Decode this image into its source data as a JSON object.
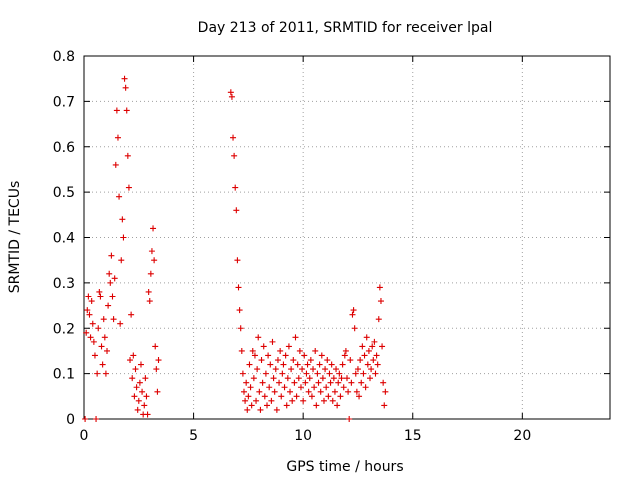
{
  "chart_data": {
    "type": "scatter",
    "title": "Day 213 of 2011, SRMTID for receiver lpal",
    "xlabel": "GPS time / hours",
    "ylabel": "SRMTID / TECUs",
    "xlim": [
      0,
      24
    ],
    "ylim": [
      0,
      0.8
    ],
    "x_ticks": [
      0,
      5,
      10,
      15,
      20
    ],
    "y_ticks": [
      0,
      0.1,
      0.2,
      0.3,
      0.4,
      0.5,
      0.6,
      0.7,
      0.8
    ],
    "x_tick_labels": [
      "0",
      "5",
      "10",
      "15",
      "20"
    ],
    "y_tick_labels": [
      "0",
      "0.1",
      "0.2",
      "0.3",
      "0.4",
      "0.5",
      "0.6",
      "0.7",
      "0.8"
    ],
    "grid": true,
    "marker": "plus",
    "color": "#dd0000",
    "series": [
      {
        "name": "SRMTID",
        "points": [
          [
            0.05,
            0
          ],
          [
            0.1,
            0.19
          ],
          [
            0.15,
            0.24
          ],
          [
            0.2,
            0.27
          ],
          [
            0.25,
            0.23
          ],
          [
            0.3,
            0.18
          ],
          [
            0.35,
            0.26
          ],
          [
            0.4,
            0.21
          ],
          [
            0.45,
            0.17
          ],
          [
            0.5,
            0.14
          ],
          [
            0.55,
            0
          ],
          [
            0.6,
            0.1
          ],
          [
            0.65,
            0.2
          ],
          [
            0.7,
            0.28
          ],
          [
            0.75,
            0.27
          ],
          [
            0.8,
            0.16
          ],
          [
            0.85,
            0.12
          ],
          [
            0.9,
            0.22
          ],
          [
            0.95,
            0.18
          ],
          [
            1.0,
            0.1
          ],
          [
            1.05,
            0.15
          ],
          [
            1.1,
            0.25
          ],
          [
            1.15,
            0.32
          ],
          [
            1.2,
            0.3
          ],
          [
            1.25,
            0.36
          ],
          [
            1.3,
            0.27
          ],
          [
            1.35,
            0.22
          ],
          [
            1.4,
            0.31
          ],
          [
            1.45,
            0.56
          ],
          [
            1.5,
            0.68
          ],
          [
            1.55,
            0.62
          ],
          [
            1.6,
            0.49
          ],
          [
            1.65,
            0.21
          ],
          [
            1.7,
            0.35
          ],
          [
            1.75,
            0.44
          ],
          [
            1.8,
            0.4
          ],
          [
            1.85,
            0.75
          ],
          [
            1.9,
            0.73
          ],
          [
            1.95,
            0.68
          ],
          [
            2.0,
            0.58
          ],
          [
            2.05,
            0.51
          ],
          [
            2.1,
            0.13
          ],
          [
            2.15,
            0.23
          ],
          [
            2.2,
            0.09
          ],
          [
            2.25,
            0.14
          ],
          [
            2.3,
            0.05
          ],
          [
            2.35,
            0.11
          ],
          [
            2.4,
            0.07
          ],
          [
            2.45,
            0.02
          ],
          [
            2.5,
            0.04
          ],
          [
            2.55,
            0.08
          ],
          [
            2.6,
            0.12
          ],
          [
            2.65,
            0.06
          ],
          [
            2.7,
            0.01
          ],
          [
            2.75,
            0.03
          ],
          [
            2.8,
            0.09
          ],
          [
            2.85,
            0.05
          ],
          [
            2.9,
            0.01
          ],
          [
            2.95,
            0.28
          ],
          [
            3.0,
            0.26
          ],
          [
            3.05,
            0.32
          ],
          [
            3.1,
            0.37
          ],
          [
            3.15,
            0.42
          ],
          [
            3.2,
            0.35
          ],
          [
            3.25,
            0.16
          ],
          [
            3.3,
            0.11
          ],
          [
            3.35,
            0.06
          ],
          [
            3.4,
            0.13
          ],
          [
            6.7,
            0.72
          ],
          [
            6.75,
            0.71
          ],
          [
            6.8,
            0.62
          ],
          [
            6.85,
            0.58
          ],
          [
            6.9,
            0.51
          ],
          [
            6.95,
            0.46
          ],
          [
            7.0,
            0.35
          ],
          [
            7.05,
            0.29
          ],
          [
            7.1,
            0.24
          ],
          [
            7.15,
            0.2
          ],
          [
            7.2,
            0.15
          ],
          [
            7.25,
            0.1
          ],
          [
            7.3,
            0.06
          ],
          [
            7.35,
            0.04
          ],
          [
            7.4,
            0.08
          ],
          [
            7.45,
            0.02
          ],
          [
            7.5,
            0.05
          ],
          [
            7.55,
            0.12
          ],
          [
            7.6,
            0.07
          ],
          [
            7.65,
            0.03
          ],
          [
            7.7,
            0.15
          ],
          [
            7.75,
            0.09
          ],
          [
            7.8,
            0.14
          ],
          [
            7.85,
            0.04
          ],
          [
            7.9,
            0.11
          ],
          [
            7.95,
            0.18
          ],
          [
            8.0,
            0.06
          ],
          [
            8.05,
            0.02
          ],
          [
            8.1,
            0.13
          ],
          [
            8.15,
            0.08
          ],
          [
            8.2,
            0.16
          ],
          [
            8.25,
            0.05
          ],
          [
            8.3,
            0.1
          ],
          [
            8.35,
            0.03
          ],
          [
            8.4,
            0.14
          ],
          [
            8.45,
            0.07
          ],
          [
            8.5,
            0.12
          ],
          [
            8.55,
            0.04
          ],
          [
            8.6,
            0.17
          ],
          [
            8.65,
            0.09
          ],
          [
            8.7,
            0.06
          ],
          [
            8.75,
            0.11
          ],
          [
            8.8,
            0.02
          ],
          [
            8.85,
            0.13
          ],
          [
            8.9,
            0.08
          ],
          [
            8.95,
            0.15
          ],
          [
            9.0,
            0.05
          ],
          [
            9.05,
            0.1
          ],
          [
            9.1,
            0.12
          ],
          [
            9.15,
            0.07
          ],
          [
            9.2,
            0.14
          ],
          [
            9.25,
            0.03
          ],
          [
            9.3,
            0.09
          ],
          [
            9.35,
            0.16
          ],
          [
            9.4,
            0.06
          ],
          [
            9.45,
            0.11
          ],
          [
            9.5,
            0.04
          ],
          [
            9.55,
            0.13
          ],
          [
            9.6,
            0.08
          ],
          [
            9.65,
            0.18
          ],
          [
            9.7,
            0.05
          ],
          [
            9.75,
            0.12
          ],
          [
            9.8,
            0.09
          ],
          [
            9.85,
            0.15
          ],
          [
            9.9,
            0.07
          ],
          [
            9.95,
            0.11
          ],
          [
            10.0,
            0.04
          ],
          [
            10.05,
            0.14
          ],
          [
            10.1,
            0.08
          ],
          [
            10.15,
            0.1
          ],
          [
            10.2,
            0.12
          ],
          [
            10.25,
            0.06
          ],
          [
            10.3,
            0.09
          ],
          [
            10.35,
            0.13
          ],
          [
            10.4,
            0.05
          ],
          [
            10.45,
            0.11
          ],
          [
            10.5,
            0.07
          ],
          [
            10.55,
            0.15
          ],
          [
            10.6,
            0.03
          ],
          [
            10.65,
            0.1
          ],
          [
            10.7,
            0.08
          ],
          [
            10.75,
            0.12
          ],
          [
            10.8,
            0.06
          ],
          [
            10.85,
            0.14
          ],
          [
            10.9,
            0.09
          ],
          [
            10.95,
            0.04
          ],
          [
            11.0,
            0.11
          ],
          [
            11.05,
            0.07
          ],
          [
            11.1,
            0.13
          ],
          [
            11.15,
            0.05
          ],
          [
            11.2,
            0.1
          ],
          [
            11.25,
            0.08
          ],
          [
            11.3,
            0.12
          ],
          [
            11.35,
            0.04
          ],
          [
            11.4,
            0.09
          ],
          [
            11.45,
            0.06
          ],
          [
            11.5,
            0.11
          ],
          [
            11.55,
            0.03
          ],
          [
            11.6,
            0.08
          ],
          [
            11.65,
            0.1
          ],
          [
            11.7,
            0.05
          ],
          [
            11.75,
            0.09
          ],
          [
            11.8,
            0.12
          ],
          [
            11.85,
            0.07
          ],
          [
            11.9,
            0.14
          ],
          [
            11.95,
            0.15
          ],
          [
            12.0,
            0.09
          ],
          [
            12.05,
            0.06
          ],
          [
            12.1,
            0
          ],
          [
            12.15,
            0.13
          ],
          [
            12.2,
            0.08
          ],
          [
            12.25,
            0.23
          ],
          [
            12.3,
            0.24
          ],
          [
            12.35,
            0.2
          ],
          [
            12.4,
            0.1
          ],
          [
            12.45,
            0.06
          ],
          [
            12.5,
            0.11
          ],
          [
            12.55,
            0.05
          ],
          [
            12.6,
            0.13
          ],
          [
            12.65,
            0.08
          ],
          [
            12.7,
            0.16
          ],
          [
            12.75,
            0.1
          ],
          [
            12.8,
            0.14
          ],
          [
            12.85,
            0.07
          ],
          [
            12.9,
            0.18
          ],
          [
            12.95,
            0.12
          ],
          [
            13.0,
            0.15
          ],
          [
            13.05,
            0.09
          ],
          [
            13.1,
            0.11
          ],
          [
            13.15,
            0.16
          ],
          [
            13.2,
            0.13
          ],
          [
            13.25,
            0.17
          ],
          [
            13.3,
            0.1
          ],
          [
            13.35,
            0.14
          ],
          [
            13.4,
            0.12
          ],
          [
            13.45,
            0.22
          ],
          [
            13.5,
            0.29
          ],
          [
            13.55,
            0.26
          ],
          [
            13.6,
            0.16
          ],
          [
            13.65,
            0.08
          ],
          [
            13.7,
            0.03
          ],
          [
            13.75,
            0.06
          ]
        ]
      }
    ]
  }
}
